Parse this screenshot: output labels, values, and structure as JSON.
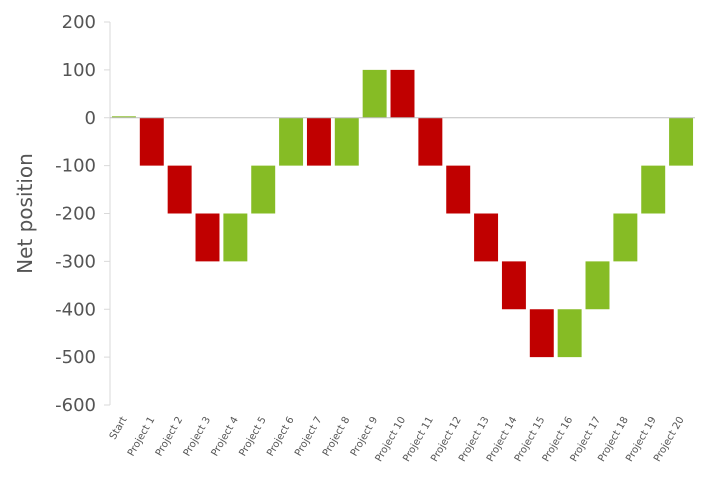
{
  "chart_data": {
    "type": "bar",
    "subtype": "waterfall",
    "title": "",
    "xlabel": "",
    "ylabel": "Net position",
    "ylim": [
      -600,
      200
    ],
    "yticks": [
      200,
      100,
      0,
      -100,
      -200,
      -300,
      -400,
      -500,
      -600
    ],
    "grid": false,
    "legend": "none",
    "colors": {
      "increase": "#86bc25",
      "decrease": "#c00000",
      "axis": "#d9d9d9",
      "zero_line": "#bfbfbf",
      "text": "#555555"
    },
    "categories": [
      "Start",
      "Project 1",
      "Project 2",
      "Project 3",
      "Project 4",
      "Project 5",
      "Project 6",
      "Project 7",
      "Project 8",
      "Project 9",
      "Project 10",
      "Project 11",
      "Project 12",
      "Project 13",
      "Project 14",
      "Project 15",
      "Project 16",
      "Project 17",
      "Project 18",
      "Project 19",
      "Project 20"
    ],
    "bars": [
      {
        "from": 0,
        "to": 3,
        "kind": "increase"
      },
      {
        "from": 0,
        "to": -100,
        "kind": "decrease"
      },
      {
        "from": -100,
        "to": -200,
        "kind": "decrease"
      },
      {
        "from": -200,
        "to": -300,
        "kind": "decrease"
      },
      {
        "from": -300,
        "to": -200,
        "kind": "increase"
      },
      {
        "from": -200,
        "to": -100,
        "kind": "increase"
      },
      {
        "from": -100,
        "to": 0,
        "kind": "increase"
      },
      {
        "from": 0,
        "to": -100,
        "kind": "decrease"
      },
      {
        "from": -100,
        "to": 0,
        "kind": "increase"
      },
      {
        "from": 0,
        "to": 100,
        "kind": "increase"
      },
      {
        "from": 100,
        "to": 0,
        "kind": "decrease"
      },
      {
        "from": 0,
        "to": -100,
        "kind": "decrease"
      },
      {
        "from": -100,
        "to": -200,
        "kind": "decrease"
      },
      {
        "from": -200,
        "to": -300,
        "kind": "decrease"
      },
      {
        "from": -300,
        "to": -400,
        "kind": "decrease"
      },
      {
        "from": -400,
        "to": -500,
        "kind": "decrease"
      },
      {
        "from": -500,
        "to": -400,
        "kind": "increase"
      },
      {
        "from": -400,
        "to": -300,
        "kind": "increase"
      },
      {
        "from": -300,
        "to": -200,
        "kind": "increase"
      },
      {
        "from": -200,
        "to": -100,
        "kind": "increase"
      },
      {
        "from": -100,
        "to": 0,
        "kind": "increase"
      }
    ]
  }
}
